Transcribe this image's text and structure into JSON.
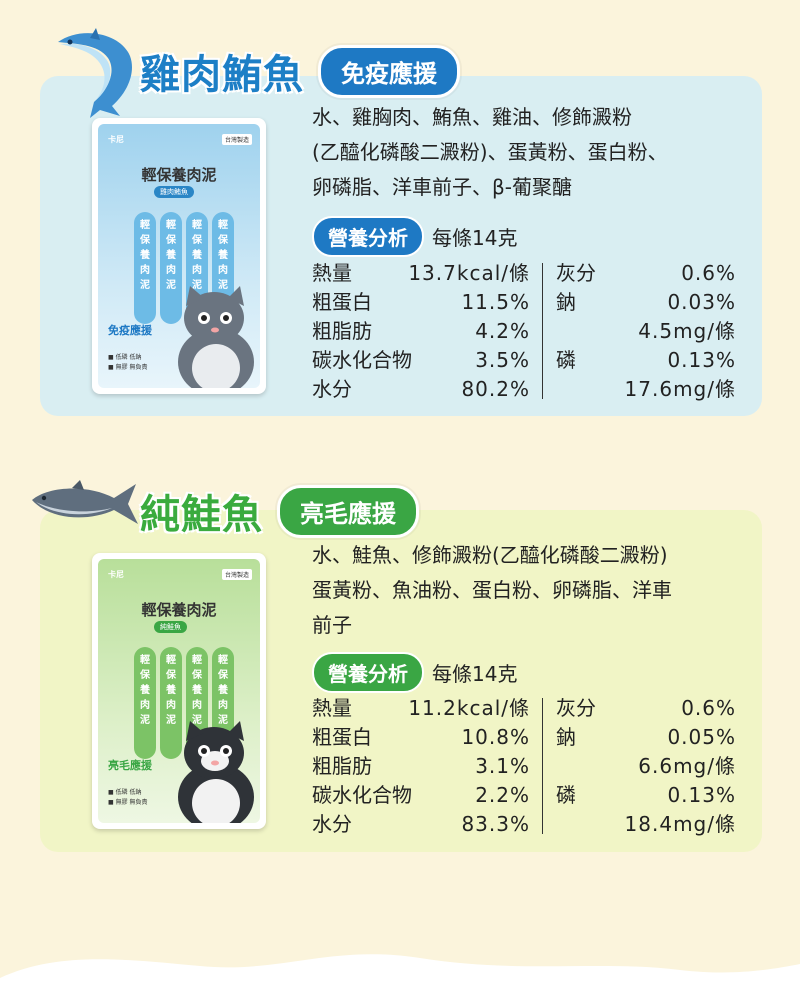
{
  "sections": [
    {
      "title": "雞肉鮪魚",
      "badge": "免疫應援",
      "ingredients": [
        "水、雞胸肉、鮪魚、雞油、修飾澱粉",
        "(乙醯化磷酸二澱粉)、蛋黃粉、蛋白粉、",
        "卵磷脂、洋車前子、β-葡聚醣"
      ],
      "nutrition_label": "營養分析",
      "per_unit": "每條14克",
      "left_rows": [
        {
          "name": "熱量",
          "value": "13.7kcal/條"
        },
        {
          "name": "粗蛋白",
          "value": "11.5%"
        },
        {
          "name": "粗脂肪",
          "value": "4.2%"
        },
        {
          "name": "碳水化合物",
          "value": "3.5%"
        },
        {
          "name": "水分",
          "value": "80.2%"
        }
      ],
      "right_rows": [
        {
          "name": "灰分",
          "value": "0.6%"
        },
        {
          "name": "鈉",
          "value": "0.03%"
        },
        {
          "name": "",
          "value": "4.5mg/條"
        },
        {
          "name": "磷",
          "value": "0.13%"
        },
        {
          "name": "",
          "value": "17.6mg/條"
        }
      ],
      "package": {
        "brand": "卡尼",
        "tag": "台灣製造",
        "name": "輕保養肉泥",
        "flavor": "雞肉鮪魚",
        "claim": "免疫應援",
        "stick_text": "輕保養肉泥",
        "mini1": "■ 低磷 低鈉",
        "mini2": "■ 無膠 無負責"
      }
    },
    {
      "title": "純鮭魚",
      "badge": "亮毛應援",
      "ingredients": [
        "水、鮭魚、修飾澱粉(乙醯化磷酸二澱粉)",
        "蛋黃粉、魚油粉、蛋白粉、卵磷脂、洋車",
        "前子"
      ],
      "nutrition_label": "營養分析",
      "per_unit": "每條14克",
      "left_rows": [
        {
          "name": "熱量",
          "value": "11.2kcal/條"
        },
        {
          "name": "粗蛋白",
          "value": "10.8%"
        },
        {
          "name": "粗脂肪",
          "value": "3.1%"
        },
        {
          "name": "碳水化合物",
          "value": "2.2%"
        },
        {
          "name": "水分",
          "value": "83.3%"
        }
      ],
      "right_rows": [
        {
          "name": "灰分",
          "value": "0.6%"
        },
        {
          "name": "鈉",
          "value": "0.05%"
        },
        {
          "name": "",
          "value": "6.6mg/條"
        },
        {
          "name": "磷",
          "value": "0.13%"
        },
        {
          "name": "",
          "value": "18.4mg/條"
        }
      ],
      "package": {
        "brand": "卡尼",
        "tag": "台灣製造",
        "name": "輕保養肉泥",
        "flavor": "純鮭魚",
        "claim": "亮毛應援",
        "stick_text": "輕保養肉泥",
        "mini1": "■ 低磷 低鈉",
        "mini2": "■ 無膠 無負責"
      }
    }
  ],
  "colors": {
    "background": "#fbf4dc",
    "blue_card": "#d9eef2",
    "green_card": "#f1f5c6",
    "blue_accent": "#1e79c4",
    "green_accent": "#3aa644"
  }
}
